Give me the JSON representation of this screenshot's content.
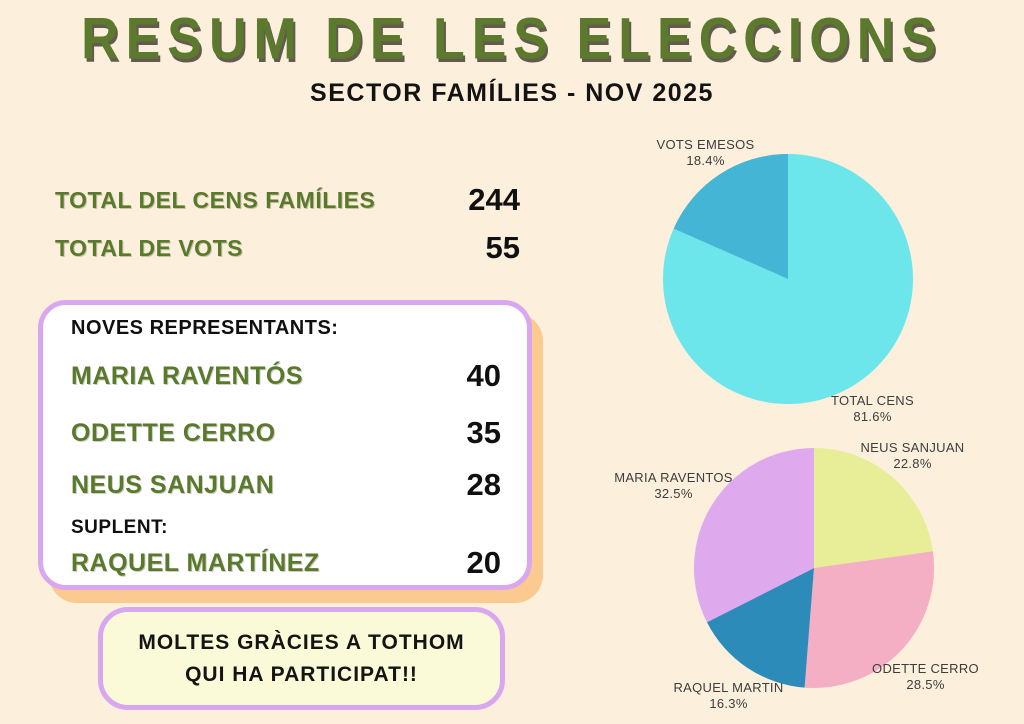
{
  "header": {
    "title": "RESUM DE LES ELECCIONS",
    "subtitle": "SECTOR FAMÍLIES - NOV 2025"
  },
  "totals": {
    "rows": [
      {
        "label": "TOTAL DEL CENS FAMÍLIES",
        "value": "244"
      },
      {
        "label": "TOTAL DE VOTS",
        "value": "55"
      }
    ]
  },
  "representatives": {
    "heading": "NOVES REPRESENTANTS:",
    "rows": [
      {
        "name": "MARIA RAVENTÓS",
        "votes": "40"
      },
      {
        "name": "ODETTE CERRO",
        "votes": "35"
      },
      {
        "name": "NEUS SANJUAN",
        "votes": "28"
      }
    ],
    "substitute_heading": "SUPLENT:",
    "substitute": {
      "name": "RAQUEL MARTÍNEZ",
      "votes": "20"
    }
  },
  "thanks": {
    "line1": "MOLTES GRÀCIES A TOTHOM",
    "line2": "QUI HA PARTICIPAT!!"
  },
  "theme": {
    "background": "#FCEFDC",
    "title_green": "#5C7A2E",
    "text_black": "#161616",
    "card_border_purple": "#D9A7F0",
    "card_shadow_orange": "#FACA90",
    "thanks_background": "#FAFAD9"
  },
  "chart_data": [
    {
      "type": "pie",
      "name": "participation",
      "title": "",
      "direction": "clockwise",
      "start_angle_deg_from_top": 0,
      "legend_position": "labels-adjacent-to-slices",
      "slices": [
        {
          "label": "TOTAL CENS",
          "value_pct": 81.6,
          "pct_label": "81.6%",
          "color": "#6CE6EA"
        },
        {
          "label": "VOTS EMESOS",
          "value_pct": 18.4,
          "pct_label": "18.4%",
          "color": "#45B5D6"
        }
      ]
    },
    {
      "type": "pie",
      "name": "votes-by-candidate",
      "title": "",
      "direction": "clockwise",
      "start_angle_deg_from_top": 0,
      "legend_position": "labels-adjacent-to-slices",
      "slices": [
        {
          "label": "NEUS SANJUAN",
          "value_pct": 22.8,
          "pct_label": "22.8%",
          "color": "#E8EE97"
        },
        {
          "label": "ODETTE CERRO",
          "value_pct": 28.5,
          "pct_label": "28.5%",
          "color": "#F4AFC4"
        },
        {
          "label": "RAQUEL MARTIN",
          "value_pct": 16.3,
          "pct_label": "16.3%",
          "color": "#2D8BBA"
        },
        {
          "label": "MARIA RAVENTOS",
          "value_pct": 32.5,
          "pct_label": "32.5%",
          "color": "#DFA9EE"
        }
      ]
    }
  ]
}
